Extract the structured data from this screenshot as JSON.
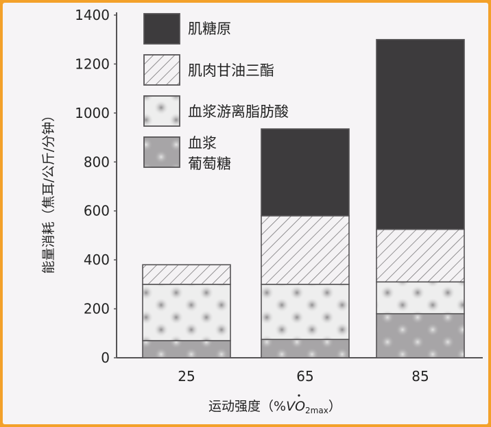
{
  "chart_data": {
    "type": "bar",
    "stacked": true,
    "categories": [
      "25",
      "65",
      "85"
    ],
    "series": [
      {
        "name": "血浆葡萄糖",
        "values": [
          70,
          75,
          180
        ],
        "pattern": "dark-mottled"
      },
      {
        "name": "血浆游离脂肪酸",
        "values": [
          230,
          225,
          130
        ],
        "pattern": "light-mottled"
      },
      {
        "name": "肌肉甘油三酯",
        "values": [
          80,
          280,
          215
        ],
        "pattern": "hatch"
      },
      {
        "name": "肌糖原",
        "values": [
          0,
          355,
          775
        ],
        "pattern": "dark-solid"
      }
    ],
    "ylim": [
      0,
      1400
    ],
    "yticks": [
      "0",
      "200",
      "400",
      "600",
      "800",
      "1000",
      "1200",
      "1400"
    ],
    "ylabel": "能量消耗（焦耳/公斤/分钟）",
    "xlabel": "运动强度（%VO2max）",
    "xlabel_main": "运动强度（%",
    "xlabel_v": "V",
    "xlabel_o": "O",
    "xlabel_sub": "2max",
    "xlabel_close": "）",
    "legend": {
      "placement": "top-left",
      "entries": [
        {
          "lines": [
            "肌糖原"
          ],
          "pattern": "dark-solid"
        },
        {
          "lines": [
            "肌肉甘油三酯"
          ],
          "pattern": "hatch"
        },
        {
          "lines": [
            "血浆游离脂肪酸"
          ],
          "pattern": "light-mottled"
        },
        {
          "lines": [
            "血浆",
            "葡萄糖"
          ],
          "pattern": "dark-mottled"
        }
      ]
    },
    "colors": {
      "dark-solid": "#3d3b3d",
      "hatch-bg": "#f4f2f4",
      "hatch-line": "#6a686a",
      "light-mottled-bg": "#eeeeee",
      "light-mottled-spot": "#a8a8a8",
      "dark-mottled-bg": "#a7a5a7",
      "dark-mottled-spot": "#dedede",
      "frame": "#555355"
    }
  }
}
